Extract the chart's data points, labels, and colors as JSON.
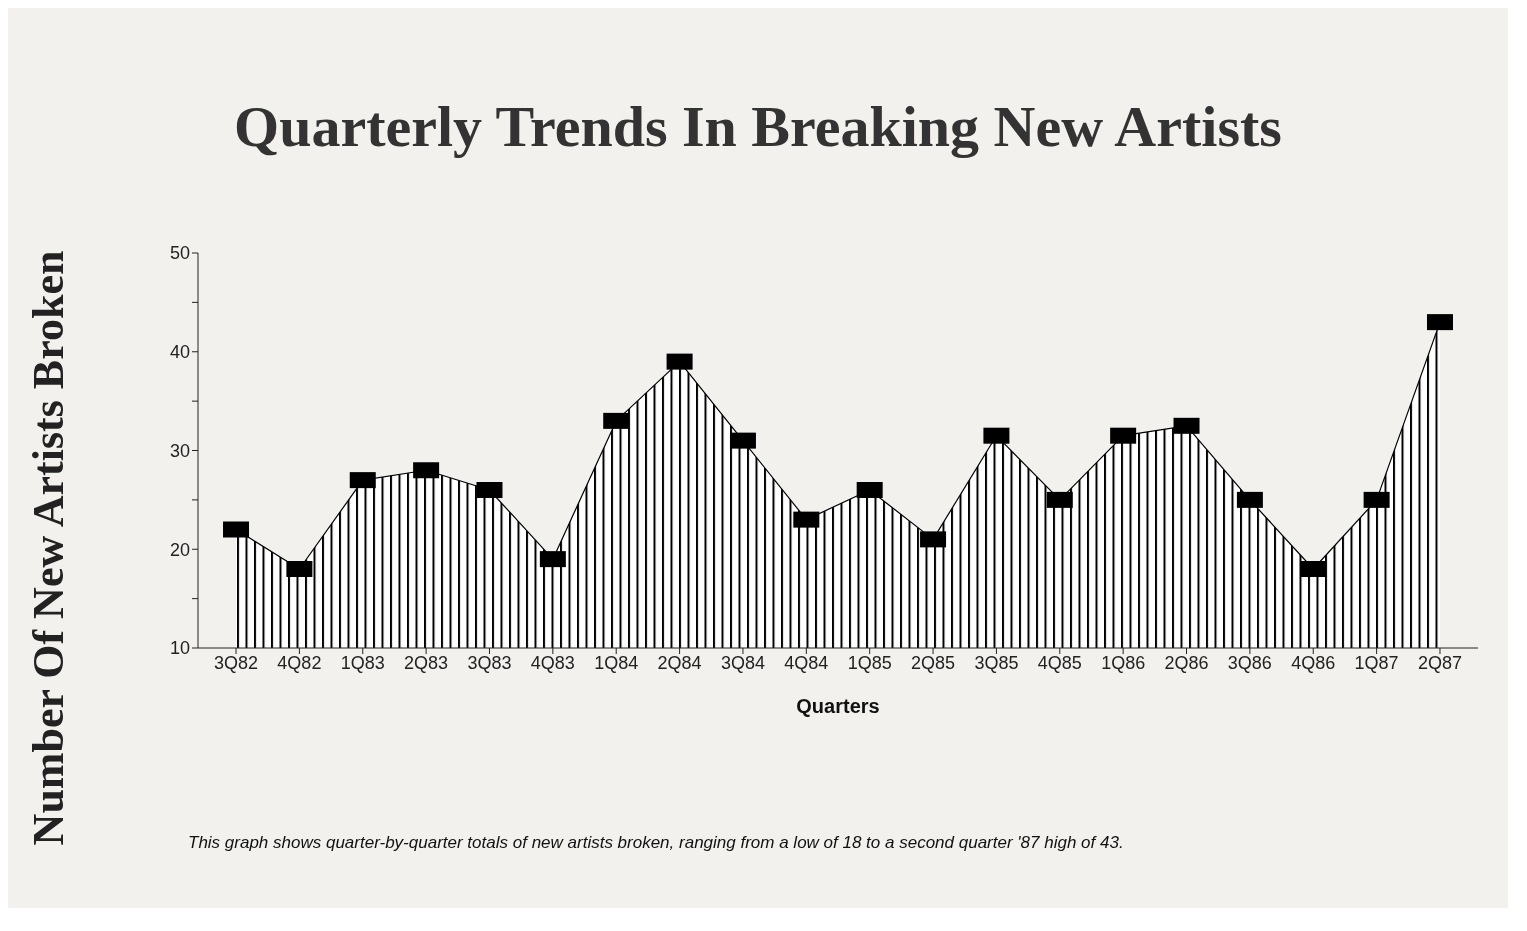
{
  "chart_data": {
    "type": "area",
    "title": "Quarterly Trends In Breaking New Artists",
    "xlabel": "Quarters",
    "ylabel": "Number Of New Artists Broken",
    "categories": [
      "3Q82",
      "4Q82",
      "1Q83",
      "2Q83",
      "3Q83",
      "4Q83",
      "1Q84",
      "2Q84",
      "3Q84",
      "4Q84",
      "1Q85",
      "2Q85",
      "3Q85",
      "4Q85",
      "1Q86",
      "2Q86",
      "3Q86",
      "4Q86",
      "1Q87",
      "2Q87"
    ],
    "values": [
      22,
      18,
      27,
      28,
      26,
      19,
      33,
      39,
      31,
      23,
      26,
      21,
      31.5,
      25,
      31.5,
      32.5,
      25,
      18,
      25,
      43
    ],
    "color": "#000000",
    "marker": "square",
    "line_style": "solid",
    "grid": false,
    "legend": false,
    "ylim": [
      10,
      50
    ],
    "yticks": [
      10,
      {
        "value": 15,
        "label": null
      },
      20,
      {
        "value": 25,
        "label": null
      },
      30,
      {
        "value": 35,
        "label": null
      },
      40,
      {
        "value": 45,
        "label": null
      },
      50
    ],
    "annotations": [
      "This graph shows quarter-by-quarter totals of new artists broken, ranging from a low of 18 to a second quarter '87 high of 43."
    ]
  }
}
